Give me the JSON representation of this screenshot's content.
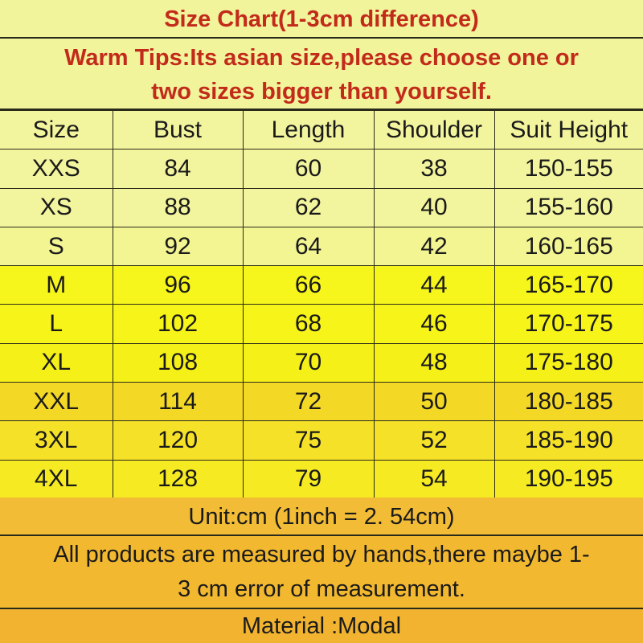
{
  "title": "Size Chart(1-3cm difference)",
  "tips": [
    "Warm Tips:Its asian size,please choose one or",
    "two sizes bigger than yourself."
  ],
  "table": {
    "headers": [
      "Size",
      "Bust",
      "Length",
      "Shoulder",
      "Suit Height"
    ],
    "rows": [
      [
        "XXS",
        "84",
        "60",
        "38",
        "150-155"
      ],
      [
        "XS",
        "88",
        "62",
        "40",
        "155-160"
      ],
      [
        "S",
        "92",
        "64",
        "42",
        "160-165"
      ],
      [
        "M",
        "96",
        "66",
        "44",
        "165-170"
      ],
      [
        "L",
        "102",
        "68",
        "46",
        "170-175"
      ],
      [
        "XL",
        "108",
        "70",
        "48",
        "175-180"
      ],
      [
        "XXL",
        "114",
        "72",
        "50",
        "180-185"
      ],
      [
        "3XL",
        "120",
        "75",
        "52",
        "185-190"
      ],
      [
        "4XL",
        "128",
        "79",
        "54",
        "190-195"
      ]
    ],
    "row_colors": [
      "#f3f59e",
      "#f3f59e",
      "#f3f592",
      "#f6f51c",
      "#f6f418",
      "#f5f018",
      "#f4d826",
      "#f5e228",
      "#f6ea22"
    ]
  },
  "unit": "Unit:cm (1inch = 2. 54cm)",
  "note": [
    "All products are measured by hands,there maybe 1-",
    "3 cm error of measurement."
  ],
  "material": "Material :Modal",
  "colors": {
    "title": "#c22a1a",
    "top_bg": "#f2f49c",
    "bottom_bg": "#f2b830"
  }
}
